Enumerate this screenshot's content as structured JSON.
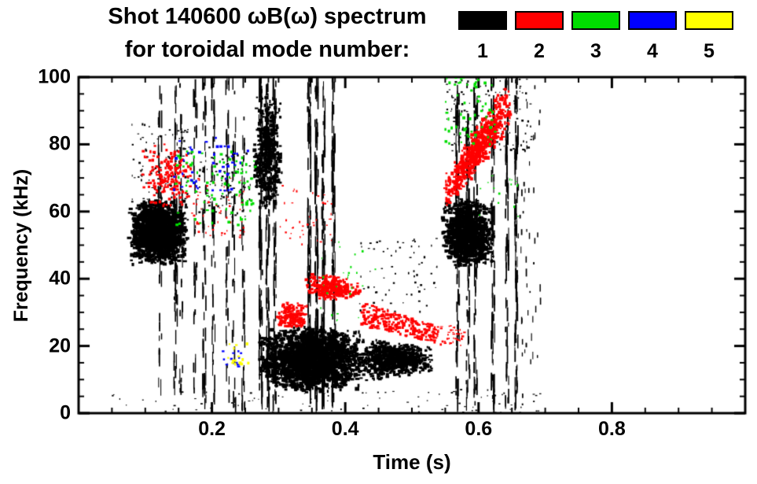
{
  "title": {
    "line1": "Shot 140600 ωB(ω) spectrum",
    "line2": "for toroidal mode number:"
  },
  "legend": {
    "modes": [
      {
        "label": "1",
        "color": "#000000"
      },
      {
        "label": "2",
        "color": "#ff0000"
      },
      {
        "label": "3",
        "color": "#00dd00"
      },
      {
        "label": "4",
        "color": "#0000ff"
      },
      {
        "label": "5",
        "color": "#ffff00"
      }
    ]
  },
  "axes": {
    "xlabel": "Time (s)",
    "ylabel": "Frequency (kHz)",
    "xlim": [
      0,
      1
    ],
    "ylim": [
      0,
      100
    ],
    "xticks": [
      0.2,
      0.4,
      0.6,
      0.8
    ],
    "xtick_labels": [
      "0.2",
      "0.4",
      "0.6",
      "0.8"
    ],
    "yticks": [
      0,
      20,
      40,
      60,
      80,
      100
    ],
    "ytick_labels": [
      "0",
      "20",
      "40",
      "60",
      "80",
      "100"
    ],
    "x_minor_step": 0.05,
    "y_minor_step": 5
  },
  "chart_data": {
    "type": "scatter",
    "title": "Shot 140600 ωB(ω) spectrum for toroidal mode number",
    "xlabel": "Time (s)",
    "ylabel": "Frequency (kHz)",
    "xlim": [
      0,
      1
    ],
    "ylim": [
      0,
      100
    ],
    "legend_position": "top-right",
    "grid": false,
    "series": [
      {
        "name": "n=1",
        "color": "#000000",
        "clusters": [
          {
            "t": [
              0.075,
              0.165
            ],
            "f": [
              44,
              64
            ],
            "n": 1600,
            "w": [
              2,
              6
            ],
            "h": [
              2,
              5
            ],
            "dist": "center"
          },
          {
            "t": [
              0.08,
              0.17
            ],
            "f": [
              63,
              86
            ],
            "n": 110,
            "w": [
              1,
              3
            ],
            "h": [
              1,
              3
            ]
          },
          {
            "t": [
              0.12,
              0.26
            ],
            "f": [
              2,
              100
            ],
            "n": 380,
            "w": [
              1,
              2
            ],
            "h": [
              4,
              24
            ],
            "columns": 9
          },
          {
            "t": [
              0.262,
              0.305
            ],
            "f": [
              60,
              95
            ],
            "n": 480,
            "w": [
              2,
              5
            ],
            "h": [
              2,
              5
            ],
            "dist": "center"
          },
          {
            "t": [
              0.268,
              0.302
            ],
            "f": [
              2,
              100
            ],
            "n": 240,
            "w": [
              1,
              2
            ],
            "h": [
              5,
              28
            ],
            "columns": 3
          },
          {
            "t": [
              0.27,
              0.43
            ],
            "f": [
              6,
              26
            ],
            "n": 2100,
            "w": [
              2,
              6
            ],
            "h": [
              2,
              5
            ],
            "dist": "center"
          },
          {
            "t": [
              0.41,
              0.535
            ],
            "f": {
              "start": [
                9,
                23
              ],
              "end": [
                12,
                20
              ]
            },
            "n": 900,
            "w": [
              2,
              5
            ],
            "h": [
              2,
              4
            ],
            "dist": "center"
          },
          {
            "t": [
              0.335,
              0.395
            ],
            "f": [
              2,
              100
            ],
            "n": 330,
            "w": [
              1,
              2
            ],
            "h": [
              5,
              28
            ],
            "columns": 4
          },
          {
            "t": [
              0.42,
              0.54
            ],
            "f": [
              30,
              52
            ],
            "n": 70,
            "w": [
              1,
              3
            ],
            "h": [
              1,
              3
            ]
          },
          {
            "t": [
              0.545,
              0.625
            ],
            "f": [
              43,
              64
            ],
            "n": 1000,
            "w": [
              2,
              6
            ],
            "h": [
              2,
              5
            ],
            "dist": "center"
          },
          {
            "t": [
              0.555,
              0.665
            ],
            "f": [
              2,
              100
            ],
            "n": 420,
            "w": [
              1,
              2
            ],
            "h": [
              5,
              26
            ],
            "columns": 6
          },
          {
            "t": [
              0.55,
              0.68
            ],
            "f": [
              78,
              100
            ],
            "n": 140,
            "w": [
              1,
              3
            ],
            "h": [
              1,
              3
            ]
          },
          {
            "t": [
              0.05,
              0.7
            ],
            "f": [
              0,
              7
            ],
            "n": 90,
            "w": [
              1,
              3
            ],
            "h": [
              1,
              2
            ]
          },
          {
            "t": [
              0.18,
              0.26
            ],
            "f": [
              58,
              80
            ],
            "n": 90,
            "w": [
              1,
              3
            ],
            "h": [
              1,
              3
            ]
          },
          {
            "t": [
              0.655,
              0.695
            ],
            "f": [
              0,
              100
            ],
            "n": 60,
            "w": [
              1,
              2
            ],
            "h": [
              2,
              10
            ]
          }
        ]
      },
      {
        "name": "n=2",
        "color": "#ff0000",
        "clusters": [
          {
            "t": [
              0.095,
              0.175
            ],
            "f": [
              60,
              82
            ],
            "n": 170,
            "w": [
              2,
              4
            ],
            "h": [
              2,
              4
            ],
            "dist": "center"
          },
          {
            "t": [
              0.17,
              0.25
            ],
            "f": [
              52,
              70
            ],
            "n": 60,
            "w": [
              1,
              3
            ],
            "h": [
              1,
              3
            ]
          },
          {
            "t": [
              0.295,
              0.345
            ],
            "f": [
              25,
              33
            ],
            "n": 160,
            "w": [
              2,
              5
            ],
            "h": [
              2,
              4
            ],
            "dist": "center"
          },
          {
            "t": [
              0.34,
              0.425
            ],
            "f": {
              "start": [
                34,
                42
              ],
              "end": [
                33,
                40
              ]
            },
            "n": 260,
            "w": [
              2,
              5
            ],
            "h": [
              2,
              4
            ],
            "dist": "center"
          },
          {
            "t": [
              0.425,
              0.535
            ],
            "f": {
              "start": [
                26,
                33
              ],
              "end": [
                21,
                26
              ]
            },
            "n": 200,
            "w": [
              2,
              5
            ],
            "h": [
              2,
              4
            ]
          },
          {
            "t": [
              0.53,
              0.58
            ],
            "f": [
              20,
              26
            ],
            "n": 50,
            "w": [
              1,
              4
            ],
            "h": [
              1,
              3
            ]
          },
          {
            "t": [
              0.545,
              0.655
            ],
            "f": {
              "start": [
                58,
                70
              ],
              "end": [
                86,
                103
              ]
            },
            "n": 550,
            "w": [
              2,
              5
            ],
            "h": [
              2,
              5
            ],
            "dist": "center"
          },
          {
            "t": [
              0.3,
              0.38
            ],
            "f": [
              50,
              68
            ],
            "n": 40,
            "w": [
              1,
              3
            ],
            "h": [
              1,
              3
            ]
          }
        ]
      },
      {
        "name": "n=3",
        "color": "#00dd00",
        "clusters": [
          {
            "t": [
              0.145,
              0.27
            ],
            "f": [
              56,
              78
            ],
            "n": 90,
            "w": [
              2,
              4
            ],
            "h": [
              2,
              4
            ]
          },
          {
            "t": [
              0.55,
              0.625
            ],
            "f": [
              80,
              102
            ],
            "n": 65,
            "w": [
              2,
              4
            ],
            "h": [
              2,
              4
            ]
          },
          {
            "t": [
              0.36,
              0.46
            ],
            "f": [
              26,
              52
            ],
            "n": 25,
            "w": [
              1,
              3
            ],
            "h": [
              1,
              3
            ]
          },
          {
            "t": [
              0.6,
              0.66
            ],
            "f": [
              58,
              72
            ],
            "n": 15,
            "w": [
              1,
              3
            ],
            "h": [
              1,
              3
            ]
          }
        ]
      },
      {
        "name": "n=4",
        "color": "#0000ff",
        "clusters": [
          {
            "t": [
              0.14,
              0.255
            ],
            "f": [
              66,
              82
            ],
            "n": 42,
            "w": [
              2,
              4
            ],
            "h": [
              2,
              4
            ]
          },
          {
            "t": [
              0.215,
              0.245
            ],
            "f": [
              13,
              19
            ],
            "n": 12,
            "w": [
              2,
              4
            ],
            "h": [
              2,
              3
            ]
          }
        ]
      },
      {
        "name": "n=5",
        "color": "#ffff00",
        "clusters": [
          {
            "t": [
              0.222,
              0.255
            ],
            "f": [
              13,
              21
            ],
            "n": 14,
            "w": [
              2,
              4
            ],
            "h": [
              2,
              4
            ]
          }
        ]
      }
    ]
  }
}
